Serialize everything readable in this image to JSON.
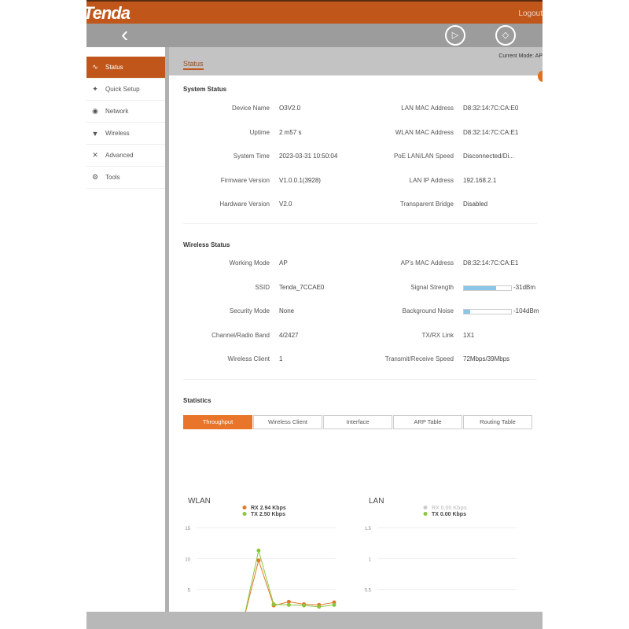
{
  "header": {
    "logo": "Tenda",
    "logout": "Logout"
  },
  "nav": {
    "back": "‹",
    "icons": [
      "screen-record-icon",
      "rotate-icon"
    ]
  },
  "sidebar": {
    "items": [
      {
        "label": "Status",
        "icon": "∿",
        "name": "status"
      },
      {
        "label": "Quick Setup",
        "icon": "✦",
        "name": "quick-setup"
      },
      {
        "label": "Network",
        "icon": "◉",
        "name": "network"
      },
      {
        "label": "Wireless",
        "icon": "▼",
        "name": "wireless"
      },
      {
        "label": "Advanced",
        "icon": "✕",
        "name": "advanced"
      },
      {
        "label": "Tools",
        "icon": "⚙",
        "name": "tools"
      }
    ]
  },
  "main": {
    "tab": "Status",
    "mode": "Current Mode: AP"
  },
  "system": {
    "title": "System Status",
    "left": [
      [
        "Device Name",
        "O3V2.0"
      ],
      [
        "Uptime",
        "2 m57 s"
      ],
      [
        "System Time",
        "2023-03-31 10:50:04"
      ],
      [
        "Firmware Version",
        "V1.0.0.1(3928)"
      ],
      [
        "Hardware Version",
        "V2.0"
      ]
    ],
    "right": [
      [
        "LAN MAC Address",
        "D8:32:14:7C:CA:E0"
      ],
      [
        "WLAN MAC Address",
        "D8:32:14:7C:CA:E1"
      ],
      [
        "PoE LAN/LAN Speed",
        "Disconnected/Di..."
      ],
      [
        "LAN IP Address",
        "192.168.2.1"
      ],
      [
        "Transparent Bridge",
        "Disabled"
      ]
    ]
  },
  "wireless": {
    "title": "Wireless Status",
    "left": [
      [
        "Working Mode",
        "AP"
      ],
      [
        "SSID",
        "Tenda_7CCAE0"
      ],
      [
        "Security Mode",
        "None"
      ],
      [
        "Channel/Radio Band",
        "4/2427"
      ],
      [
        "Wireless Client",
        "1"
      ]
    ],
    "right": [
      [
        "AP's MAC Address",
        "D8:32:14:7C:CA:E1"
      ],
      [
        "Signal Strength",
        "-31dBm"
      ],
      [
        "Background Noise",
        "-104dBm"
      ],
      [
        "TX/RX Link",
        "1X1"
      ],
      [
        "Transmit/Receive Speed",
        "72Mbps/39Mbps"
      ]
    ],
    "signal_fill": 0.69,
    "noise_fill": 0.13
  },
  "statistics": {
    "title": "Statistics",
    "tabs": [
      "Throughput",
      "Wireless Client",
      "Interface",
      "ARP Table",
      "Routing Table"
    ],
    "active_tab": "Throughput"
  },
  "chart_data": [
    {
      "type": "line",
      "title": "WLAN",
      "ylim": [
        0,
        15
      ],
      "yticks": [
        "15",
        "10",
        "5"
      ],
      "grid": true,
      "legend": "top",
      "series": [
        {
          "name": "RX 2.94 Kbps",
          "color": "#e07a2a",
          "values": [
            0,
            0,
            0,
            0,
            9.7,
            2.4,
            3.0,
            2.6,
            2.5,
            2.9
          ]
        },
        {
          "name": "TX 2.50 Kbps",
          "color": "#8cc63f",
          "values": [
            0,
            0,
            0,
            0,
            11.3,
            2.6,
            2.5,
            2.4,
            2.2,
            2.5
          ]
        }
      ]
    },
    {
      "type": "line",
      "title": "LAN",
      "ylim": [
        0,
        1.5
      ],
      "yticks": [
        "1.5",
        "1",
        "0.5"
      ],
      "grid": true,
      "legend": "top",
      "series": [
        {
          "name": "RX 0.00 Kbps",
          "color": "#cccccc",
          "values": [
            0,
            0,
            0,
            0,
            0,
            0,
            0,
            0,
            0,
            0
          ]
        },
        {
          "name": "TX 0.00 Kbps",
          "color": "#8cc63f",
          "values": [
            0,
            0,
            0,
            0,
            0,
            0,
            0,
            0,
            0,
            0
          ]
        }
      ]
    }
  ]
}
